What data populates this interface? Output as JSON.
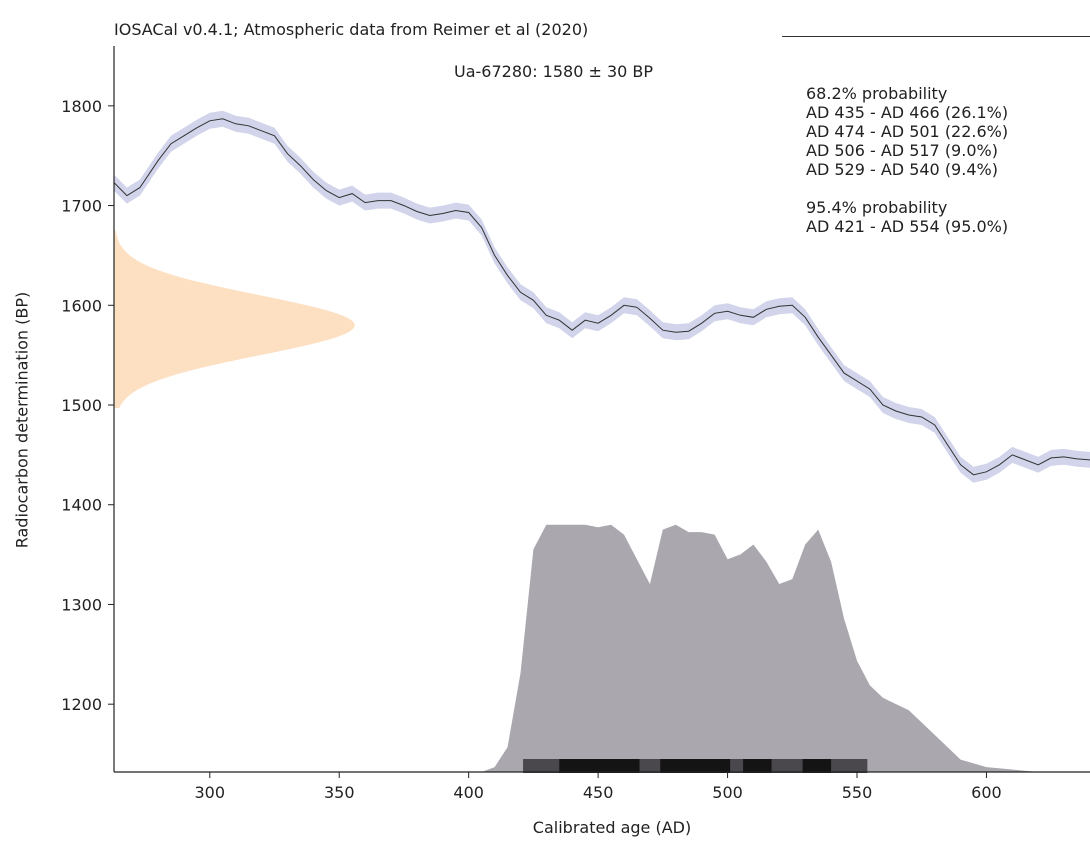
{
  "header": {
    "title": "IOSACal v0.4.1; Atmospheric data from Reimer et al (2020)",
    "sample": "Ua-67280: 1580 ± 30 BP"
  },
  "ranges": {
    "p68_title": "68.2% probability",
    "p68_items": [
      "AD 435 - AD 466 (26.1%)",
      "AD 474 - AD 501 (22.6%)",
      "AD 506 - AD 517 (9.0%)",
      "AD 529 - AD 540 (9.4%)"
    ],
    "p95_title": "95.4% probability",
    "p95_items": [
      "AD 421 - AD 554 (95.0%)"
    ]
  },
  "colors": {
    "curve": "#333333",
    "curve_band": "#c9cde6",
    "radiocarbon_dist": "#fde0c2",
    "calibrated_dist": "#aaa8ae",
    "range_bar_95": "#4a484c",
    "range_bar_68": "#151415"
  },
  "chart_data": {
    "type": "area",
    "xlabel": "Calibrated age (AD)",
    "ylabel": "Radiocarbon determination (BP)",
    "xlim": [
      263,
      640
    ],
    "ylim": [
      1132,
      1860
    ],
    "xticks": [
      300,
      350,
      400,
      450,
      500,
      550,
      600
    ],
    "yticks": [
      1200,
      1300,
      1400,
      1500,
      1600,
      1700,
      1800
    ],
    "measurement": {
      "age_bp": 1580,
      "error": 30,
      "display_range_bp": [
        1497,
        1675
      ]
    },
    "calibration_curve": {
      "x": [
        263,
        268,
        273,
        280,
        285,
        290,
        295,
        300,
        305,
        310,
        315,
        320,
        325,
        330,
        335,
        340,
        345,
        350,
        355,
        360,
        365,
        370,
        375,
        380,
        385,
        390,
        395,
        400,
        405,
        410,
        415,
        420,
        425,
        430,
        435,
        440,
        445,
        450,
        455,
        460,
        465,
        470,
        475,
        480,
        485,
        490,
        495,
        500,
        505,
        510,
        515,
        520,
        525,
        530,
        535,
        540,
        545,
        550,
        555,
        560,
        565,
        570,
        575,
        580,
        585,
        590,
        595,
        600,
        605,
        610,
        615,
        620,
        625,
        630,
        635,
        640
      ],
      "y": [
        1723,
        1710,
        1718,
        1745,
        1762,
        1770,
        1778,
        1785,
        1787,
        1782,
        1780,
        1775,
        1770,
        1752,
        1740,
        1726,
        1715,
        1708,
        1712,
        1703,
        1705,
        1705,
        1700,
        1694,
        1690,
        1692,
        1695,
        1693,
        1678,
        1650,
        1630,
        1613,
        1605,
        1590,
        1585,
        1575,
        1585,
        1582,
        1590,
        1600,
        1598,
        1587,
        1575,
        1573,
        1574,
        1582,
        1592,
        1594,
        1590,
        1588,
        1596,
        1599,
        1600,
        1588,
        1568,
        1550,
        1532,
        1524,
        1516,
        1500,
        1494,
        1490,
        1488,
        1480,
        1460,
        1440,
        1430,
        1433,
        1440,
        1450,
        1445,
        1440,
        1447,
        1448,
        1446,
        1445
      ],
      "band_halfwidth": 8
    },
    "radiocarbon_distribution": {
      "mean_bp": 1580,
      "sigma": 30,
      "peak_age_ad": 356
    },
    "calibrated_distribution": {
      "x": [
        405,
        410,
        415,
        420,
        425,
        430,
        435,
        440,
        445,
        450,
        455,
        460,
        465,
        470,
        475,
        480,
        485,
        490,
        495,
        500,
        505,
        510,
        515,
        520,
        525,
        530,
        535,
        540,
        545,
        550,
        555,
        560,
        570,
        580,
        590,
        600,
        610,
        620
      ],
      "density": [
        0,
        0.02,
        0.1,
        0.4,
        0.9,
        1.0,
        1.0,
        1.0,
        1.0,
        0.99,
        1.0,
        0.96,
        0.86,
        0.76,
        0.98,
        1.0,
        0.97,
        0.97,
        0.96,
        0.86,
        0.88,
        0.92,
        0.85,
        0.76,
        0.78,
        0.92,
        0.98,
        0.85,
        0.62,
        0.45,
        0.35,
        0.3,
        0.25,
        0.15,
        0.05,
        0.02,
        0.01,
        0
      ]
    },
    "hpd_ranges": {
      "p95": [
        [
          421,
          554
        ]
      ],
      "p68": [
        [
          435,
          466
        ],
        [
          474,
          501
        ],
        [
          506,
          517
        ],
        [
          529,
          540
        ]
      ]
    }
  }
}
